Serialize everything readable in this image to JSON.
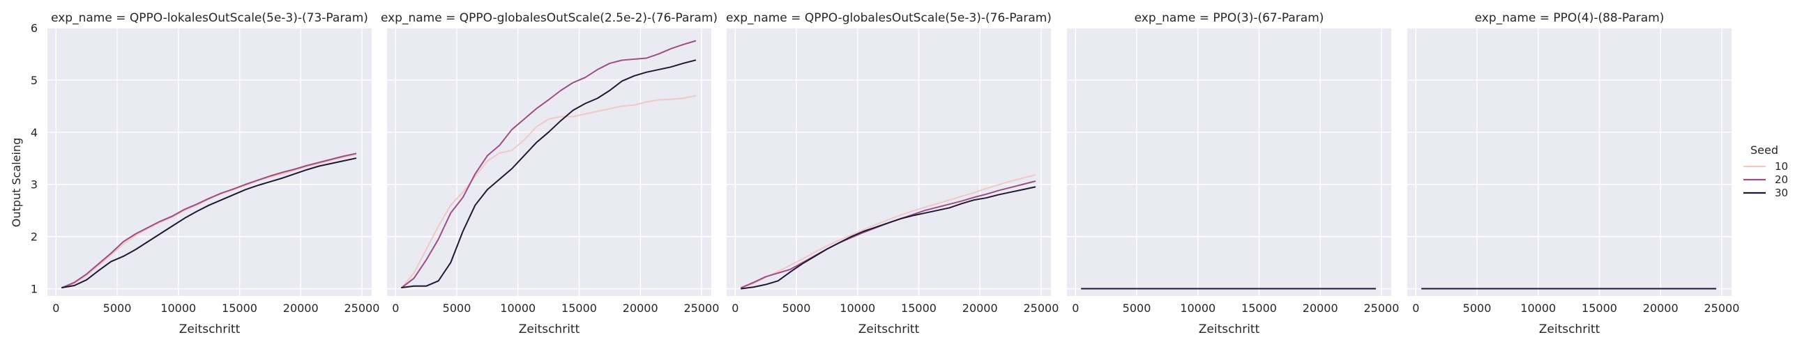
{
  "figure": {
    "ylabel": "Output Scaleing",
    "legend": {
      "title": "Seed",
      "placement": "right",
      "entries": [
        {
          "label": "10",
          "color": "#f0c9c4"
        },
        {
          "label": "20",
          "color": "#9e4d84"
        },
        {
          "label": "30",
          "color": "#1f1733"
        }
      ]
    }
  },
  "chart_data": [
    {
      "type": "line",
      "title": "exp_name = QPPO-lokalesOutScale(5e-3)-(73-Param)",
      "xlabel": "Zeitschritt",
      "ylabel": "Output Scaleing",
      "xlim": [
        -700,
        25800
      ],
      "ylim": [
        0.7,
        6.0
      ],
      "xticks": [
        0,
        5000,
        10000,
        15000,
        20000,
        25000
      ],
      "yticks": [
        1,
        2,
        3,
        4,
        5,
        6
      ],
      "grid": true,
      "series": [
        {
          "name": "10",
          "color": "#f0c9c4",
          "x": [
            500,
            1500,
            2500,
            3500,
            4500,
            5500,
            6500,
            7500,
            8500,
            9500,
            10500,
            11500,
            12500,
            13500,
            14500,
            15500,
            16500,
            17500,
            18500,
            19500,
            20500,
            21500,
            22500,
            23500,
            24500
          ],
          "y": [
            1.02,
            1.1,
            1.25,
            1.45,
            1.65,
            1.85,
            2.02,
            2.15,
            2.27,
            2.37,
            2.5,
            2.6,
            2.72,
            2.82,
            2.9,
            2.98,
            3.07,
            3.14,
            3.2,
            3.27,
            3.34,
            3.4,
            3.46,
            3.52,
            3.57
          ]
        },
        {
          "name": "20",
          "color": "#9e4d84",
          "x": [
            500,
            1500,
            2500,
            3500,
            4500,
            5500,
            6500,
            7500,
            8500,
            9500,
            10500,
            11500,
            12500,
            13500,
            14500,
            15500,
            16500,
            17500,
            18500,
            19500,
            20500,
            21500,
            22500,
            23500,
            24500
          ],
          "y": [
            1.02,
            1.12,
            1.28,
            1.48,
            1.68,
            1.9,
            2.05,
            2.17,
            2.29,
            2.39,
            2.52,
            2.62,
            2.73,
            2.83,
            2.91,
            3.0,
            3.08,
            3.16,
            3.23,
            3.29,
            3.36,
            3.42,
            3.48,
            3.54,
            3.59
          ]
        },
        {
          "name": "30",
          "color": "#1f1733",
          "x": [
            500,
            1500,
            2500,
            3500,
            4500,
            5500,
            6500,
            7500,
            8500,
            9500,
            10500,
            11500,
            12500,
            13500,
            14500,
            15500,
            16500,
            17500,
            18500,
            19500,
            20500,
            21500,
            22500,
            23500,
            24500
          ],
          "y": [
            1.02,
            1.06,
            1.17,
            1.35,
            1.52,
            1.62,
            1.75,
            1.9,
            2.05,
            2.2,
            2.35,
            2.48,
            2.6,
            2.7,
            2.8,
            2.9,
            2.98,
            3.05,
            3.12,
            3.2,
            3.28,
            3.35,
            3.4,
            3.45,
            3.5
          ]
        }
      ]
    },
    {
      "type": "line",
      "title": "exp_name = QPPO-globalesOutScale(2.5e-2)-(76-Param)",
      "xlabel": "Zeitschritt",
      "ylabel": "",
      "xlim": [
        -700,
        25800
      ],
      "ylim": [
        0.7,
        6.0
      ],
      "xticks": [
        0,
        5000,
        10000,
        15000,
        20000,
        25000
      ],
      "yticks": [
        1,
        2,
        3,
        4,
        5,
        6
      ],
      "grid": true,
      "series": [
        {
          "name": "10",
          "color": "#f0c9c4",
          "x": [
            500,
            1500,
            2500,
            3500,
            4500,
            5500,
            6500,
            7500,
            8500,
            9500,
            10500,
            11500,
            12500,
            13500,
            14500,
            15500,
            16500,
            17500,
            18500,
            19500,
            20500,
            21500,
            22500,
            23500,
            24500
          ],
          "y": [
            1.02,
            1.3,
            1.75,
            2.2,
            2.6,
            2.85,
            3.15,
            3.45,
            3.6,
            3.65,
            3.85,
            4.1,
            4.25,
            4.3,
            4.3,
            4.35,
            4.4,
            4.45,
            4.5,
            4.52,
            4.58,
            4.62,
            4.63,
            4.65,
            4.7
          ]
        },
        {
          "name": "20",
          "color": "#9e4d84",
          "x": [
            500,
            1500,
            2500,
            3500,
            4500,
            5500,
            6500,
            7500,
            8500,
            9500,
            10500,
            11500,
            12500,
            13500,
            14500,
            15500,
            16500,
            17500,
            18500,
            19500,
            20500,
            21500,
            22500,
            23500,
            24500
          ],
          "y": [
            1.02,
            1.2,
            1.55,
            1.95,
            2.45,
            2.75,
            3.2,
            3.55,
            3.75,
            4.05,
            4.25,
            4.45,
            4.62,
            4.8,
            4.95,
            5.05,
            5.2,
            5.32,
            5.38,
            5.4,
            5.42,
            5.5,
            5.6,
            5.68,
            5.75
          ]
        },
        {
          "name": "30",
          "color": "#1f1733",
          "x": [
            500,
            1500,
            2500,
            3500,
            4500,
            5500,
            6500,
            7500,
            8500,
            9500,
            10500,
            11500,
            12500,
            13500,
            14500,
            15500,
            16500,
            17500,
            18500,
            19500,
            20500,
            21500,
            22500,
            23500,
            24500
          ],
          "y": [
            1.02,
            1.05,
            1.05,
            1.15,
            1.5,
            2.1,
            2.6,
            2.9,
            3.1,
            3.3,
            3.55,
            3.8,
            4.0,
            4.22,
            4.42,
            4.55,
            4.65,
            4.8,
            4.98,
            5.08,
            5.15,
            5.2,
            5.25,
            5.32,
            5.38
          ]
        }
      ]
    },
    {
      "type": "line",
      "title": "exp_name = QPPO-globalesOutScale(5e-3)-(76-Param)",
      "xlabel": "Zeitschritt",
      "ylabel": "",
      "xlim": [
        -700,
        25800
      ],
      "ylim": [
        0.7,
        6.0
      ],
      "xticks": [
        0,
        5000,
        10000,
        15000,
        20000,
        25000
      ],
      "yticks": [
        1,
        2,
        3,
        4,
        5,
        6
      ],
      "grid": true,
      "series": [
        {
          "name": "10",
          "color": "#f0c9c4",
          "x": [
            500,
            1500,
            2500,
            3500,
            4500,
            5500,
            6500,
            7500,
            8500,
            9500,
            10500,
            11500,
            12500,
            13500,
            14500,
            15500,
            16500,
            17500,
            18500,
            19500,
            20500,
            21500,
            22500,
            23500,
            24500
          ],
          "y": [
            1.02,
            1.1,
            1.22,
            1.33,
            1.45,
            1.57,
            1.7,
            1.82,
            1.93,
            2.03,
            2.13,
            2.23,
            2.32,
            2.41,
            2.49,
            2.56,
            2.63,
            2.7,
            2.77,
            2.84,
            2.92,
            2.99,
            3.06,
            3.12,
            3.18
          ]
        },
        {
          "name": "20",
          "color": "#9e4d84",
          "x": [
            500,
            1500,
            2500,
            3500,
            4500,
            5500,
            6500,
            7500,
            8500,
            9500,
            10500,
            11500,
            12500,
            13500,
            14500,
            15500,
            16500,
            17500,
            18500,
            19500,
            20500,
            21500,
            22500,
            23500,
            24500
          ],
          "y": [
            1.02,
            1.12,
            1.23,
            1.3,
            1.37,
            1.5,
            1.63,
            1.76,
            1.88,
            1.98,
            2.08,
            2.17,
            2.26,
            2.34,
            2.42,
            2.5,
            2.56,
            2.62,
            2.68,
            2.75,
            2.81,
            2.88,
            2.94,
            3.0,
            3.06
          ]
        },
        {
          "name": "30",
          "color": "#1f1733",
          "x": [
            500,
            1500,
            2500,
            3500,
            4500,
            5500,
            6500,
            7500,
            8500,
            9500,
            10500,
            11500,
            12500,
            13500,
            14500,
            15500,
            16500,
            17500,
            18500,
            19500,
            20500,
            21500,
            22500,
            23500,
            24500
          ],
          "y": [
            1.0,
            1.03,
            1.08,
            1.15,
            1.32,
            1.48,
            1.62,
            1.76,
            1.88,
            2.0,
            2.1,
            2.18,
            2.26,
            2.34,
            2.4,
            2.45,
            2.5,
            2.55,
            2.63,
            2.7,
            2.74,
            2.8,
            2.85,
            2.9,
            2.95
          ]
        }
      ]
    },
    {
      "type": "line",
      "title": "exp_name = PPO(3)-(67-Param)",
      "xlabel": "Zeitschritt",
      "ylabel": "",
      "xlim": [
        -700,
        25800
      ],
      "ylim": [
        0.7,
        6.0
      ],
      "xticks": [
        0,
        5000,
        10000,
        15000,
        20000,
        25000
      ],
      "yticks": [
        1,
        2,
        3,
        4,
        5,
        6
      ],
      "grid": true,
      "series": [
        {
          "name": "10",
          "color": "#f0c9c4",
          "x": [
            500,
            24500
          ],
          "y": [
            1.0,
            1.0
          ]
        },
        {
          "name": "20",
          "color": "#9e4d84",
          "x": [
            500,
            24500
          ],
          "y": [
            1.0,
            1.0
          ]
        },
        {
          "name": "30",
          "color": "#1f1733",
          "x": [
            500,
            24500
          ],
          "y": [
            1.0,
            1.0
          ]
        }
      ]
    },
    {
      "type": "line",
      "title": "exp_name = PPO(4)-(88-Param)",
      "xlabel": "Zeitschritt",
      "ylabel": "",
      "xlim": [
        -700,
        25800
      ],
      "ylim": [
        0.7,
        6.0
      ],
      "xticks": [
        0,
        5000,
        10000,
        15000,
        20000,
        25000
      ],
      "yticks": [
        1,
        2,
        3,
        4,
        5,
        6
      ],
      "grid": true,
      "series": [
        {
          "name": "10",
          "color": "#f0c9c4",
          "x": [
            500,
            24500
          ],
          "y": [
            1.0,
            1.0
          ]
        },
        {
          "name": "20",
          "color": "#9e4d84",
          "x": [
            500,
            24500
          ],
          "y": [
            1.0,
            1.0
          ]
        },
        {
          "name": "30",
          "color": "#1f1733",
          "x": [
            500,
            24500
          ],
          "y": [
            1.0,
            1.0
          ]
        }
      ]
    }
  ]
}
